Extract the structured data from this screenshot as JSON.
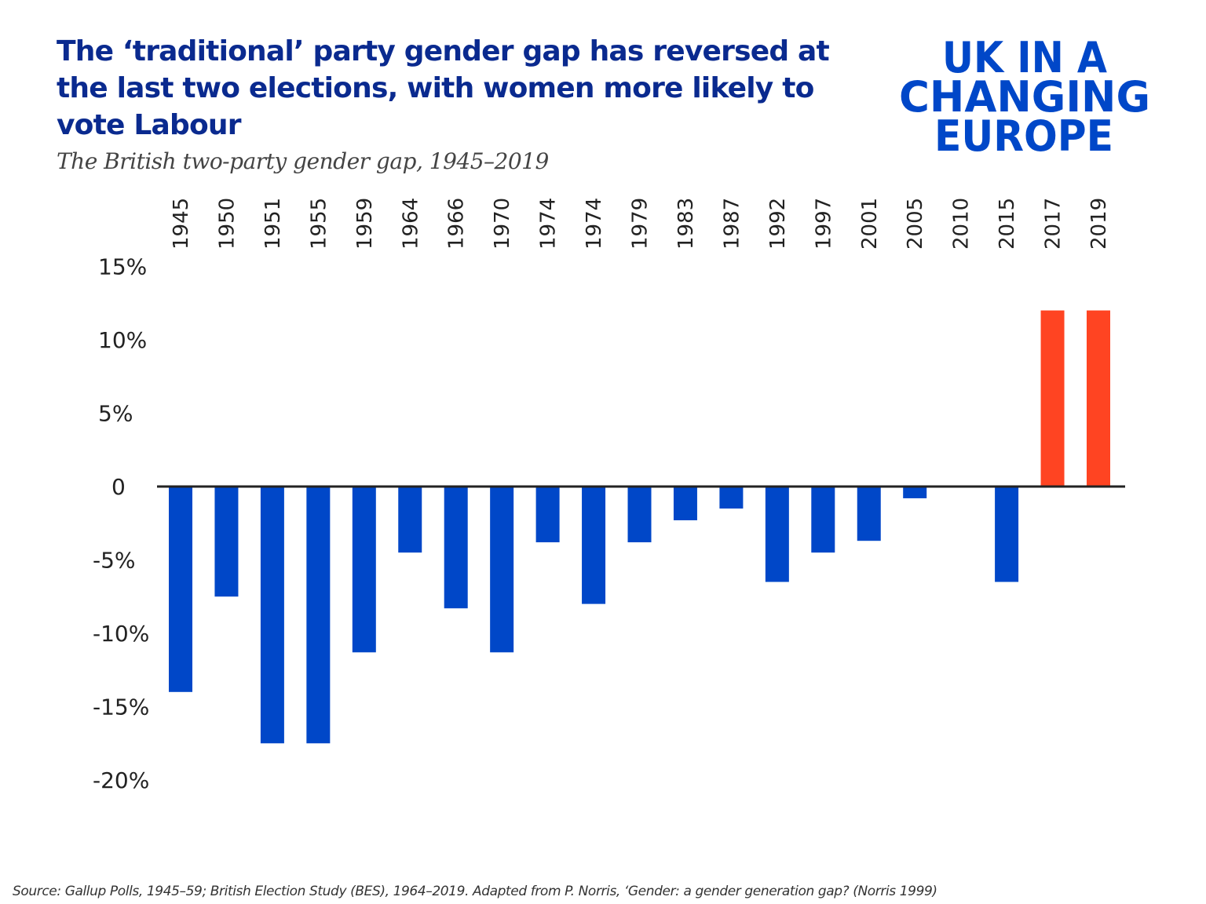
{
  "title": "The ‘traditional’ party gender gap has reversed at the last two elections, with women more likely to vote Labour",
  "logo": {
    "line1": "UK IN A",
    "line2": "CHANGING",
    "line3": "EUROPE",
    "primary_color": "#0047c8",
    "accent_color": "#ff4422"
  },
  "source": "Source: Gallup Polls, 1945–59; British Election Study (BES), 1964–2019. Adapted from P. Norris, ‘Gender: a gender generation gap? (Norris 1999)",
  "chart_data": {
    "type": "bar",
    "title": "",
    "subtitle": "The British two-party gender gap, 1945–2019",
    "xlabel": "",
    "ylabel": "",
    "categories": [
      "1945",
      "1950",
      "1951",
      "1955",
      "1959",
      "1964",
      "1966",
      "1970",
      "1974",
      "1974",
      "1979",
      "1983",
      "1987",
      "1992",
      "1997",
      "2001",
      "2005",
      "2010",
      "2015",
      "2017",
      "2019"
    ],
    "values": [
      -14,
      -7.5,
      -17.5,
      -17.5,
      -11.3,
      -4.5,
      -8.3,
      -11.3,
      -3.8,
      -8,
      -3.8,
      -2.3,
      -1.5,
      -6.5,
      -4.5,
      -3.7,
      -0.8,
      0,
      -6.5,
      12,
      12
    ],
    "ylim": [
      -20,
      15
    ],
    "yticks": [
      15,
      10,
      5,
      0,
      -5,
      -10,
      -15,
      -20
    ],
    "ytick_labels": [
      "15%",
      "10%",
      "5%",
      "0",
      "-5%",
      "-10%",
      "-15%",
      "-20%"
    ],
    "colors": {
      "negative": "#0047c8",
      "positive": "#ff4422",
      "zero_line": "#222222"
    },
    "grid": false,
    "legend": "none",
    "x_axis_position": "top, rotated labels"
  }
}
